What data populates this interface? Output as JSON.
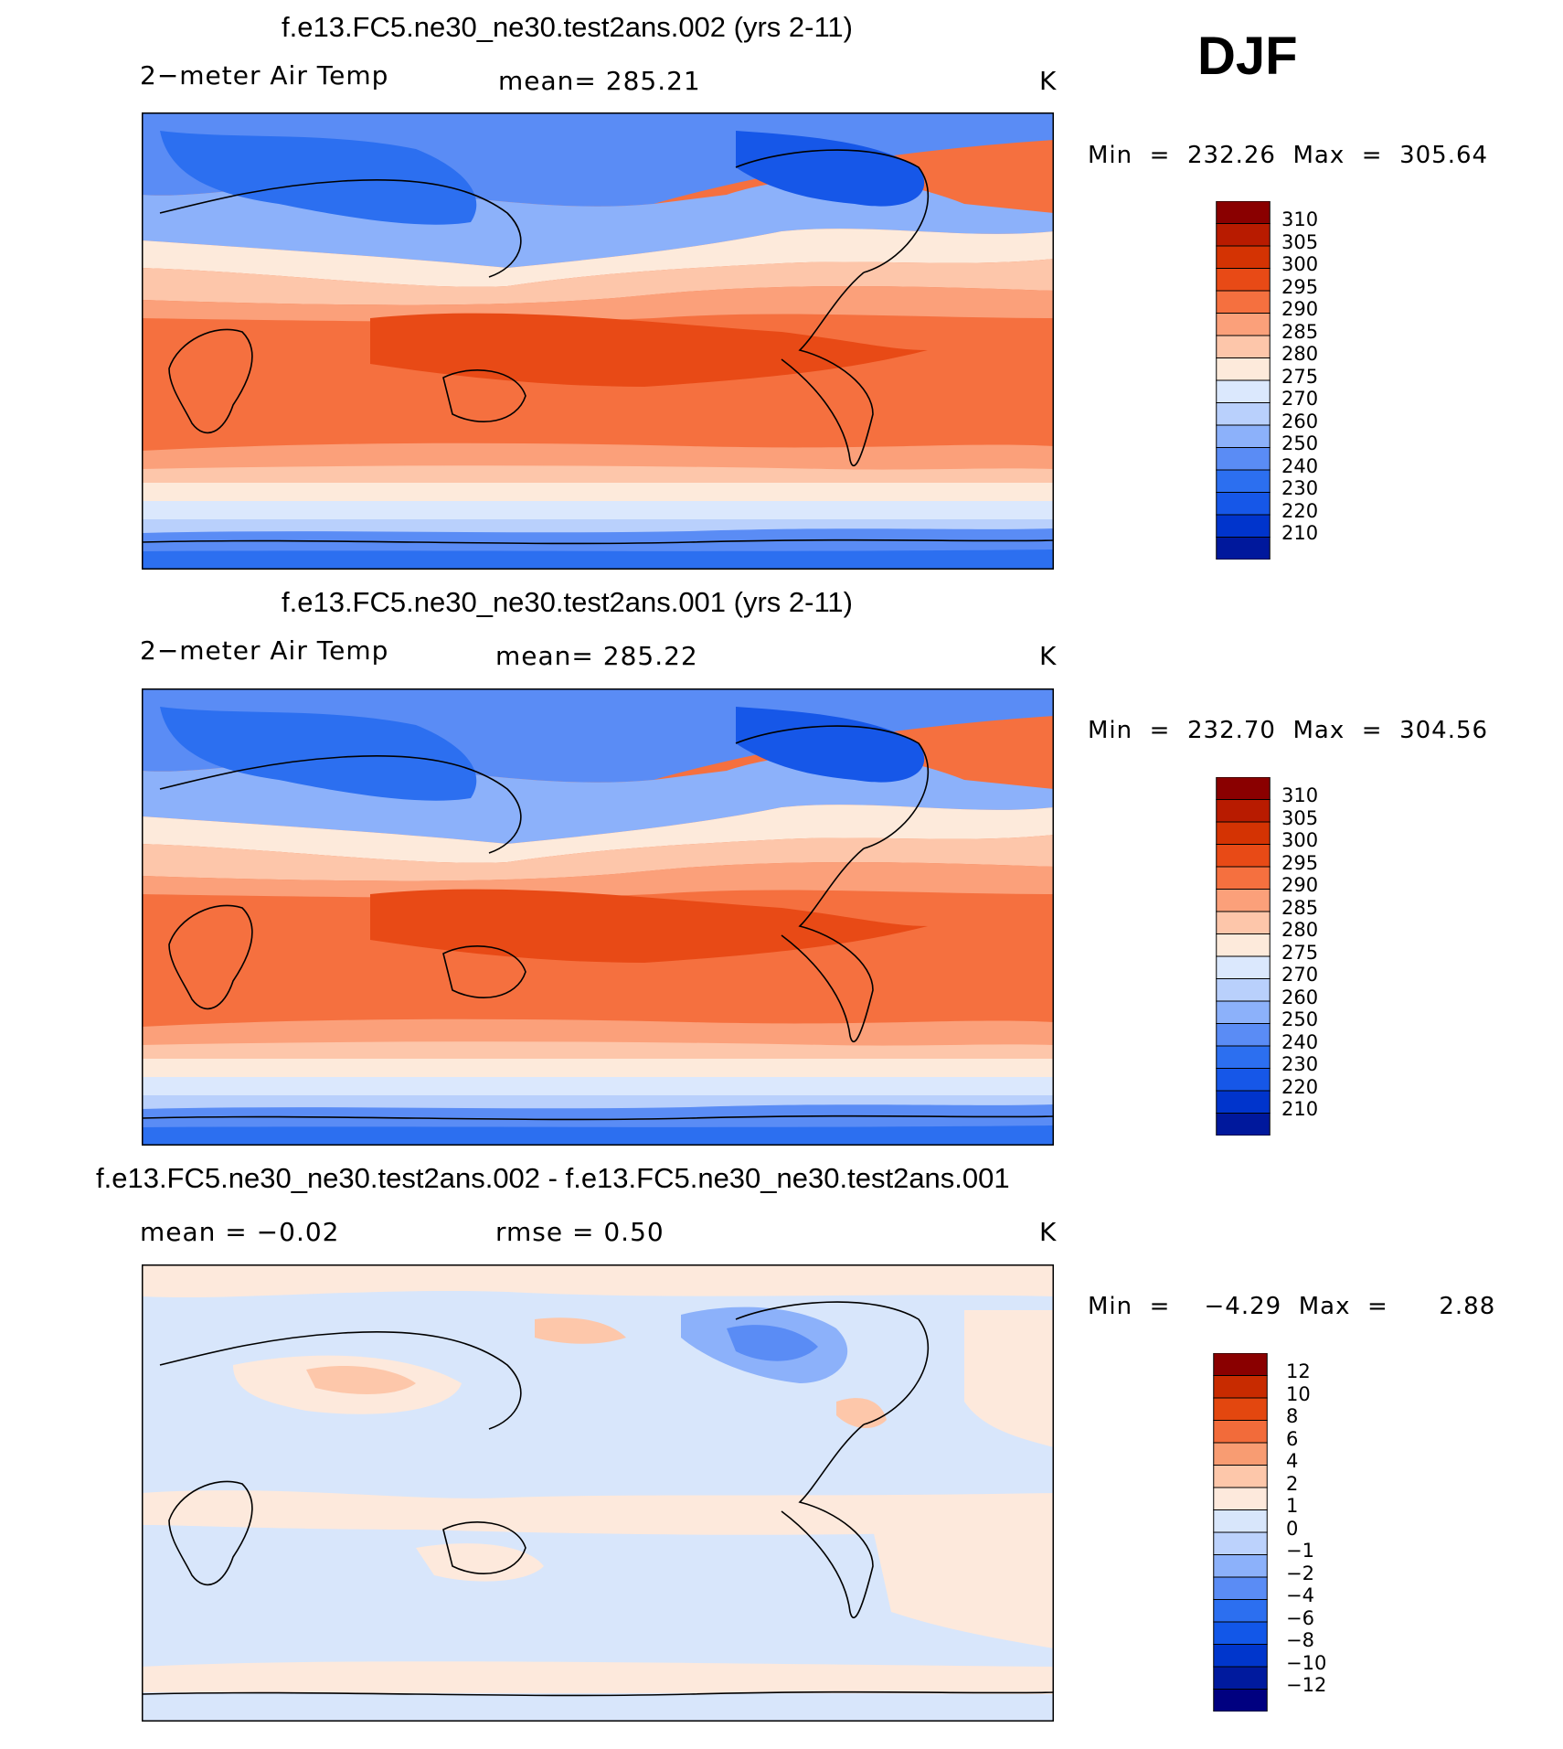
{
  "season": "DJF",
  "panels": [
    {
      "title": "f.e13.FC5.ne30_ne30.test2ans.002 (yrs 2-11)",
      "variable": "2−meter Air Temp",
      "stat": "mean=  285.21",
      "units": "K",
      "minmax": "Min  =  232.26  Max  =  305.64",
      "colorbar": [
        "310",
        "305",
        "300",
        "295",
        "290",
        "285",
        "280",
        "275",
        "270",
        "260",
        "250",
        "240",
        "230",
        "220",
        "210"
      ]
    },
    {
      "title": "f.e13.FC5.ne30_ne30.test2ans.001 (yrs 2-11)",
      "variable": "2−meter Air Temp",
      "stat": "mean=  285.22",
      "units": "K",
      "minmax": "Min  =  232.70  Max  =  304.56",
      "colorbar": [
        "310",
        "305",
        "300",
        "295",
        "290",
        "285",
        "280",
        "275",
        "270",
        "260",
        "250",
        "240",
        "230",
        "220",
        "210"
      ]
    },
    {
      "title": "f.e13.FC5.ne30_ne30.test2ans.002 - f.e13.FC5.ne30_ne30.test2ans.001",
      "mean_text": "mean  =   −0.02",
      "rmse_text": "rmse  =     0.50",
      "units": "K",
      "minmax": "Min  =    −4.29  Max  =      2.88",
      "colorbar": [
        "12",
        "10",
        "8",
        "6",
        "4",
        "2",
        "1",
        "0",
        "−1",
        "−2",
        "−4",
        "−6",
        "−8",
        "−10",
        "−12"
      ]
    }
  ],
  "colors": {
    "abs_scale": [
      "#000080",
      "#00189c",
      "#0034cc",
      "#1657e8",
      "#2c6ff0",
      "#5a8cf5",
      "#8cb1fa",
      "#b9d0fc",
      "#dbe8fd",
      "#fdeadb",
      "#fdc6aa",
      "#fba07a",
      "#f5703f",
      "#e84a16",
      "#d43303",
      "#b81b00",
      "#8a0000"
    ],
    "diff_scale": [
      "#000080",
      "#001a9e",
      "#0036cc",
      "#1257e8",
      "#2c6ff0",
      "#5a8cf5",
      "#8cb1fa",
      "#bcd2fc",
      "#d8e6fb",
      "#fde9dc",
      "#fdc7aa",
      "#f89c72",
      "#f26b3a",
      "#e3470f",
      "#c82b00",
      "#8a0000"
    ]
  }
}
